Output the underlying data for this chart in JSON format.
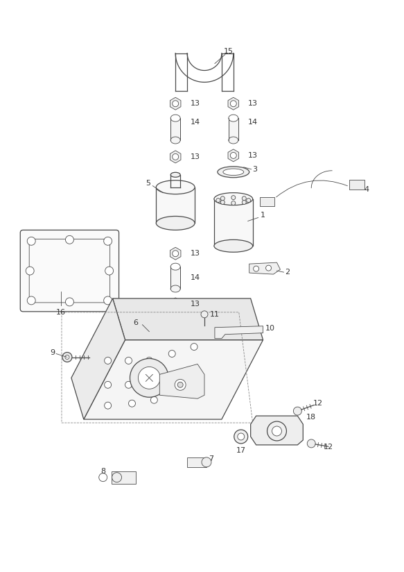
{
  "background_color": "#ffffff",
  "line_color": "#4a4a4a",
  "label_color": "#333333",
  "fig_width": 5.83,
  "fig_height": 8.24,
  "dpi": 100,
  "lw_main": 0.9,
  "lw_thin": 0.6,
  "lw_thick": 1.1
}
